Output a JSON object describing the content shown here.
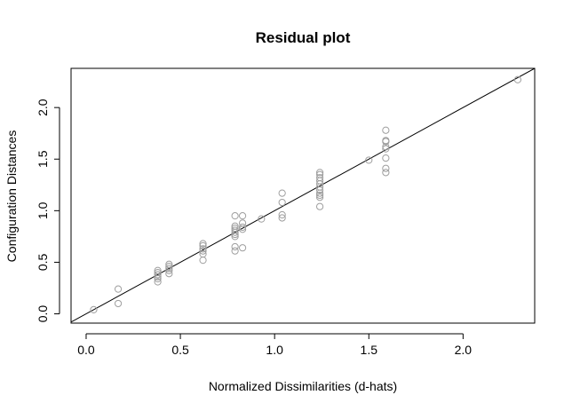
{
  "chart_data": {
    "type": "scatter",
    "title": "Residual plot",
    "xlabel": "Normalized Dissimilarities (d-hats)",
    "ylabel": "Configuration Distances",
    "xlim": [
      -0.08,
      2.38
    ],
    "ylim": [
      -0.09,
      2.38
    ],
    "xticks": [
      0.0,
      0.5,
      1.0,
      1.5,
      2.0
    ],
    "xtick_labels": [
      "0.0",
      "0.5",
      "1.0",
      "1.5",
      "2.0"
    ],
    "yticks": [
      0.0,
      0.5,
      1.0,
      1.5,
      2.0
    ],
    "ytick_labels": [
      "0.0",
      "0.5",
      "1.0",
      "1.5",
      "2.0"
    ],
    "grid": false,
    "point_color": "#9e9e9e",
    "line_color": "#000000",
    "reference_line": {
      "intercept": 0,
      "slope": 1
    },
    "points": [
      [
        0.04,
        0.04
      ],
      [
        0.17,
        0.24
      ],
      [
        0.17,
        0.1
      ],
      [
        0.38,
        0.42
      ],
      [
        0.38,
        0.4
      ],
      [
        0.38,
        0.38
      ],
      [
        0.38,
        0.36
      ],
      [
        0.38,
        0.34
      ],
      [
        0.38,
        0.31
      ],
      [
        0.44,
        0.48
      ],
      [
        0.44,
        0.46
      ],
      [
        0.44,
        0.44
      ],
      [
        0.44,
        0.42
      ],
      [
        0.44,
        0.39
      ],
      [
        0.62,
        0.68
      ],
      [
        0.62,
        0.66
      ],
      [
        0.62,
        0.63
      ],
      [
        0.62,
        0.61
      ],
      [
        0.62,
        0.58
      ],
      [
        0.62,
        0.52
      ],
      [
        0.79,
        0.95
      ],
      [
        0.79,
        0.85
      ],
      [
        0.79,
        0.83
      ],
      [
        0.79,
        0.81
      ],
      [
        0.79,
        0.79
      ],
      [
        0.79,
        0.77
      ],
      [
        0.79,
        0.75
      ],
      [
        0.79,
        0.65
      ],
      [
        0.79,
        0.61
      ],
      [
        0.83,
        0.95
      ],
      [
        0.83,
        0.88
      ],
      [
        0.83,
        0.84
      ],
      [
        0.83,
        0.82
      ],
      [
        0.83,
        0.64
      ],
      [
        0.93,
        0.92
      ],
      [
        1.04,
        1.17
      ],
      [
        1.04,
        1.08
      ],
      [
        1.04,
        0.96
      ],
      [
        1.04,
        0.93
      ],
      [
        1.24,
        1.37
      ],
      [
        1.24,
        1.35
      ],
      [
        1.24,
        1.32
      ],
      [
        1.24,
        1.29
      ],
      [
        1.24,
        1.26
      ],
      [
        1.24,
        1.23
      ],
      [
        1.24,
        1.2
      ],
      [
        1.24,
        1.17
      ],
      [
        1.24,
        1.15
      ],
      [
        1.24,
        1.13
      ],
      [
        1.24,
        1.04
      ],
      [
        1.5,
        1.49
      ],
      [
        1.59,
        1.78
      ],
      [
        1.59,
        1.68
      ],
      [
        1.59,
        1.67
      ],
      [
        1.59,
        1.62
      ],
      [
        1.59,
        1.6
      ],
      [
        1.59,
        1.51
      ],
      [
        1.59,
        1.41
      ],
      [
        1.59,
        1.37
      ],
      [
        2.29,
        2.27
      ]
    ]
  }
}
